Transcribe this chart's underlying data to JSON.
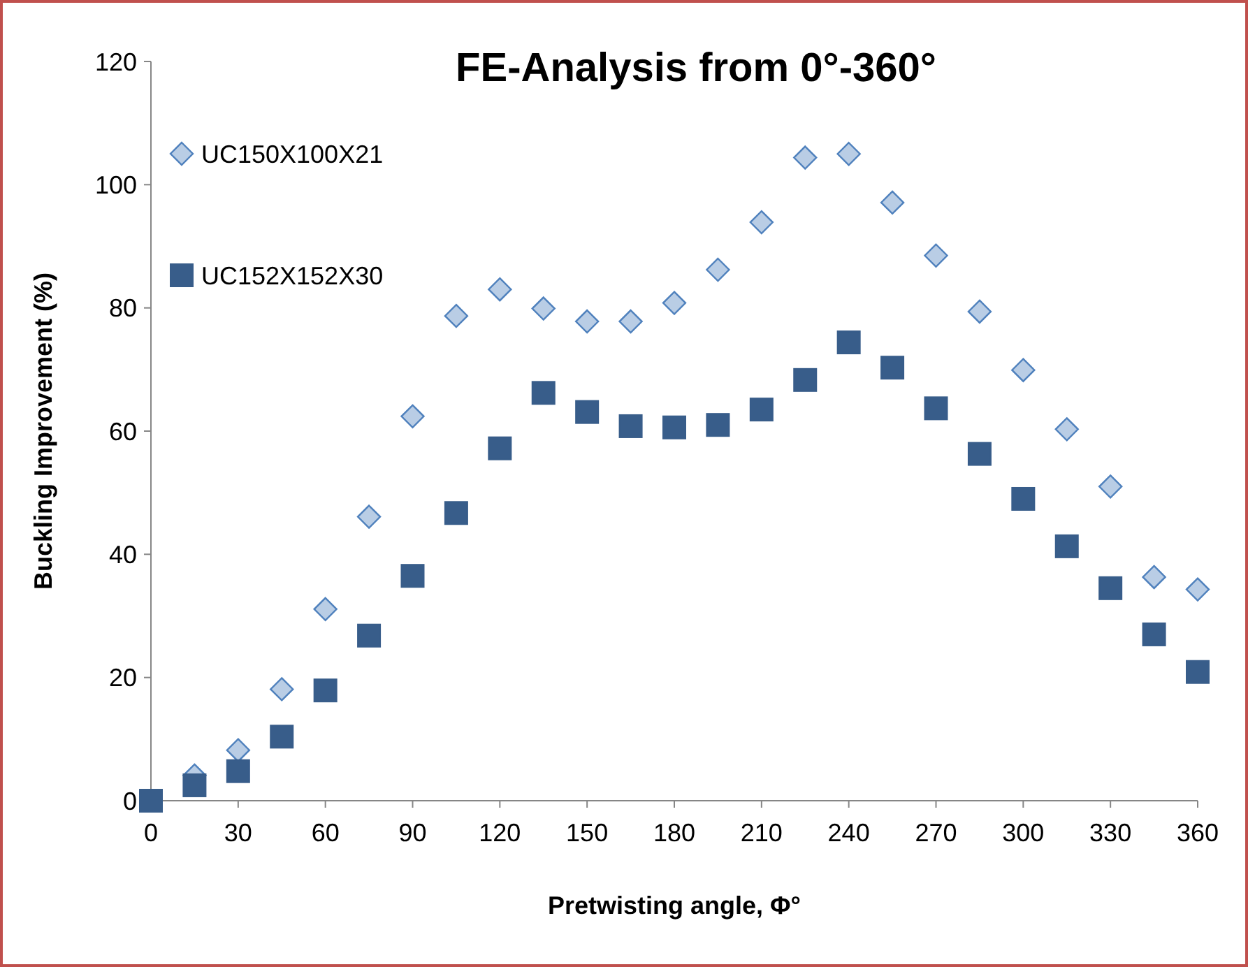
{
  "chart_data": {
    "type": "scatter",
    "title": "FE-Analysis from 0°-360°",
    "xlabel": "Pretwisting angle, Φ°",
    "ylabel": "Buckling Improvement (%)",
    "x": [
      0,
      15,
      30,
      45,
      60,
      75,
      90,
      105,
      120,
      135,
      150,
      165,
      180,
      195,
      210,
      225,
      240,
      255,
      270,
      285,
      300,
      315,
      330,
      345,
      360
    ],
    "series": [
      {
        "name": "UC150X100X21",
        "color": "#b9cde5",
        "marker": "diamond",
        "values": [
          null,
          4.1,
          8.2,
          18.1,
          31.1,
          46.1,
          62.4,
          78.7,
          83,
          79.9,
          77.8,
          77.8,
          80.8,
          86.2,
          93.9,
          104.4,
          105,
          97.1,
          88.5,
          79.4,
          69.9,
          60.3,
          51,
          36.3,
          34.3
        ]
      },
      {
        "name": "UC152X152X30",
        "color": "#385d8a",
        "marker": "square",
        "values": [
          0,
          2.5,
          4.8,
          10.4,
          17.9,
          26.8,
          36.5,
          46.7,
          57.2,
          66.2,
          63.1,
          60.8,
          60.6,
          61,
          63.5,
          68.3,
          74.4,
          70.3,
          63.7,
          56.3,
          49,
          41.3,
          34.5,
          27,
          20.9
        ]
      }
    ],
    "xlim": [
      0,
      360
    ],
    "xticks": [
      0,
      30,
      60,
      90,
      120,
      150,
      180,
      210,
      240,
      270,
      300,
      330,
      360
    ],
    "ylim": [
      0,
      120
    ],
    "yticks": [
      0,
      20,
      40,
      60,
      80,
      100,
      120
    ],
    "grid": false,
    "legend": "top left"
  }
}
